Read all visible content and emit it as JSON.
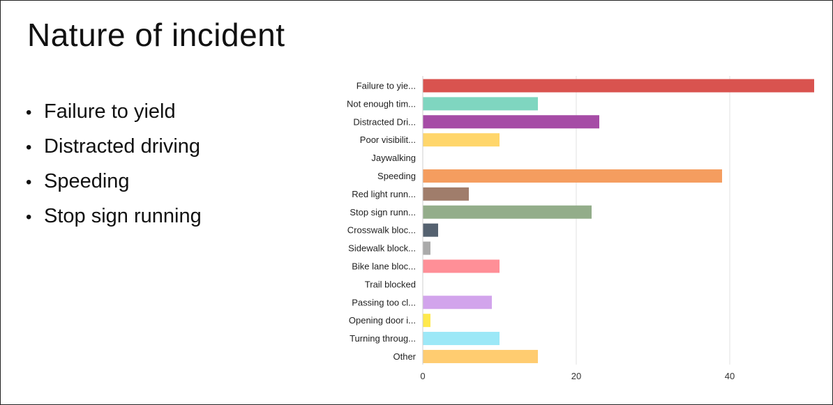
{
  "slide": {
    "title": "Nature of incident",
    "bullets": [
      "Failure to yield",
      "Distracted driving",
      "Speeding",
      "Stop sign running"
    ]
  },
  "chart_data": {
    "type": "bar",
    "orientation": "horizontal",
    "categories": [
      "Failure to yie...",
      "Not enough tim...",
      "Distracted Dri...",
      "Poor visibilit...",
      "Jaywalking",
      "Speeding",
      "Red light runn...",
      "Stop sign runn...",
      "Crosswalk bloc...",
      "Sidewalk block...",
      "Bike lane bloc...",
      "Trail blocked",
      "Passing too cl...",
      "Opening door i...",
      "Turning throug...",
      "Other"
    ],
    "values": [
      51,
      15,
      23,
      10,
      0,
      39,
      6,
      22,
      2,
      1,
      10,
      0,
      9,
      1,
      10,
      15
    ],
    "colors": [
      "#d9534f",
      "#7fd6c0",
      "#a64ca6",
      "#ffd66b",
      "#cccccc",
      "#f59d5f",
      "#a07d6b",
      "#93ad8a",
      "#556270",
      "#aaaaaa",
      "#ff8f97",
      "#cccccc",
      "#d2a4ec",
      "#ffe94d",
      "#9ce8f7",
      "#ffcc70"
    ],
    "xticks": [
      0,
      20,
      40
    ],
    "xlim": [
      0,
      53
    ],
    "grid": true,
    "title": "",
    "xlabel": "",
    "ylabel": ""
  }
}
